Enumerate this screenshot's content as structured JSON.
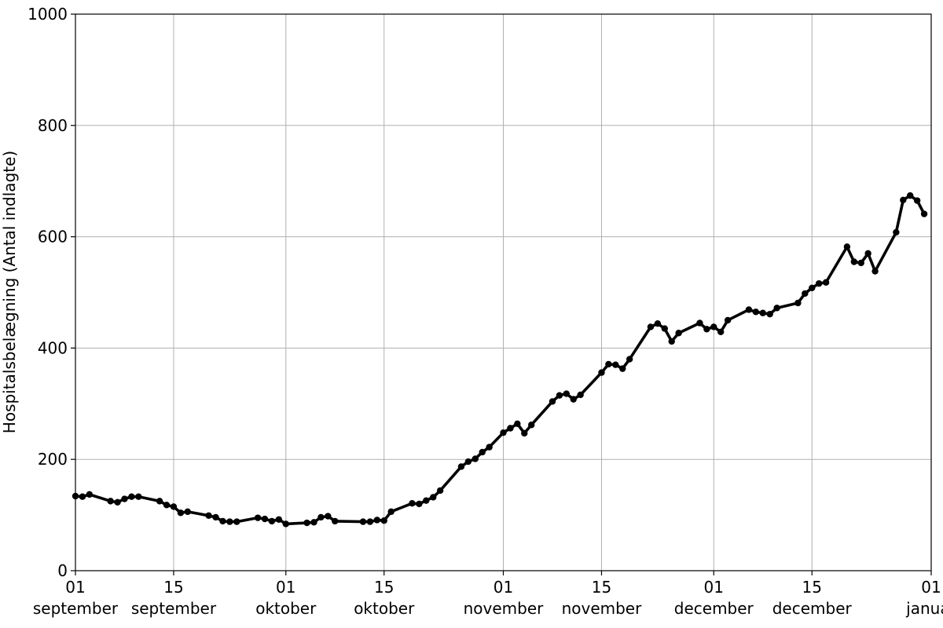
{
  "chart_data": {
    "type": "line",
    "title": "",
    "xlabel": "",
    "ylabel": "Hospitalsbelægning (Antal indlagte)",
    "ylim": [
      0,
      1000
    ],
    "xlim": [
      "2020-09-01",
      "2021-01-01"
    ],
    "grid": true,
    "line_color": "#000000",
    "marker": "circle",
    "x_ticks": [
      {
        "date": "2020-09-01",
        "day": "01",
        "month": "september"
      },
      {
        "date": "2020-09-15",
        "day": "15",
        "month": "september"
      },
      {
        "date": "2020-10-01",
        "day": "01",
        "month": "oktober"
      },
      {
        "date": "2020-10-15",
        "day": "15",
        "month": "oktober"
      },
      {
        "date": "2020-11-01",
        "day": "01",
        "month": "november"
      },
      {
        "date": "2020-11-15",
        "day": "15",
        "month": "november"
      },
      {
        "date": "2020-12-01",
        "day": "01",
        "month": "december"
      },
      {
        "date": "2020-12-15",
        "day": "15",
        "month": "december"
      },
      {
        "date": "2021-01-01",
        "day": "01",
        "month": "januar"
      }
    ],
    "y_ticks": [
      0,
      200,
      400,
      600,
      800,
      1000
    ],
    "series": [
      {
        "name": "",
        "x": [
          "2020-09-01",
          "2020-09-02",
          "2020-09-03",
          "2020-09-06",
          "2020-09-07",
          "2020-09-08",
          "2020-09-09",
          "2020-09-10",
          "2020-09-13",
          "2020-09-14",
          "2020-09-15",
          "2020-09-16",
          "2020-09-17",
          "2020-09-20",
          "2020-09-21",
          "2020-09-22",
          "2020-09-23",
          "2020-09-24",
          "2020-09-27",
          "2020-09-28",
          "2020-09-29",
          "2020-09-30",
          "2020-10-01",
          "2020-10-04",
          "2020-10-05",
          "2020-10-06",
          "2020-10-07",
          "2020-10-08",
          "2020-10-12",
          "2020-10-13",
          "2020-10-14",
          "2020-10-15",
          "2020-10-16",
          "2020-10-19",
          "2020-10-20",
          "2020-10-21",
          "2020-10-22",
          "2020-10-23",
          "2020-10-26",
          "2020-10-27",
          "2020-10-28",
          "2020-10-29",
          "2020-10-30",
          "2020-11-01",
          "2020-11-02",
          "2020-11-03",
          "2020-11-04",
          "2020-11-05",
          "2020-11-08",
          "2020-11-09",
          "2020-11-10",
          "2020-11-11",
          "2020-11-12",
          "2020-11-15",
          "2020-11-16",
          "2020-11-17",
          "2020-11-18",
          "2020-11-19",
          "2020-11-22",
          "2020-11-23",
          "2020-11-24",
          "2020-11-25",
          "2020-11-26",
          "2020-11-29",
          "2020-11-30",
          "2020-12-01",
          "2020-12-02",
          "2020-12-03",
          "2020-12-06",
          "2020-12-07",
          "2020-12-08",
          "2020-12-09",
          "2020-12-10",
          "2020-12-13",
          "2020-12-14",
          "2020-12-15",
          "2020-12-16",
          "2020-12-17",
          "2020-12-20",
          "2020-12-21",
          "2020-12-22",
          "2020-12-23",
          "2020-12-24",
          "2020-12-27",
          "2020-12-28",
          "2020-12-29",
          "2020-12-30",
          "2020-12-31"
        ],
        "values": [
          134,
          133,
          137,
          125,
          123,
          129,
          133,
          133,
          125,
          118,
          115,
          104,
          106,
          99,
          96,
          89,
          88,
          88,
          95,
          93,
          89,
          92,
          84,
          86,
          87,
          96,
          98,
          89,
          88,
          88,
          91,
          90,
          106,
          121,
          120,
          126,
          132,
          144,
          187,
          196,
          201,
          213,
          222,
          248,
          256,
          264,
          247,
          262,
          304,
          315,
          318,
          308,
          316,
          356,
          371,
          370,
          363,
          380,
          438,
          444,
          435,
          412,
          427,
          445,
          434,
          438,
          429,
          450,
          469,
          465,
          463,
          461,
          472,
          481,
          498,
          508,
          516,
          518,
          582,
          555,
          553,
          570,
          538,
          608,
          666,
          674,
          665,
          641
        ]
      }
    ]
  }
}
